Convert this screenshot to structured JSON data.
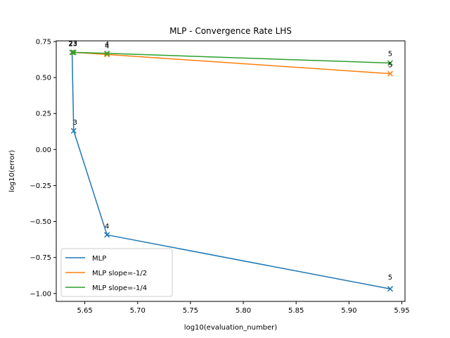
{
  "chart_data": {
    "type": "line",
    "title": "MLP - Convergence Rate LHS",
    "xlabel": "log10(evaluation_number)",
    "ylabel": "log10(error)",
    "xlim": [
      5.623,
      5.953
    ],
    "ylim": [
      -1.055,
      0.755
    ],
    "xticks": [
      5.65,
      5.7,
      5.75,
      5.8,
      5.85,
      5.9,
      5.95
    ],
    "xtick_labels": [
      "5.65",
      "5.70",
      "5.75",
      "5.80",
      "5.85",
      "5.90",
      "5.95"
    ],
    "yticks": [
      -1.0,
      -0.75,
      -0.5,
      -0.25,
      0.0,
      0.25,
      0.5,
      0.75
    ],
    "ytick_labels": [
      "−1.00",
      "−0.75",
      "−0.50",
      "−0.25",
      "0.00",
      "0.25",
      "0.50",
      "0.75"
    ],
    "grid": false,
    "legend_position": "lower-left",
    "series": [
      {
        "name": "MLP",
        "color": "#1f77b4",
        "marker": "x",
        "points": [
          {
            "x": 5.638,
            "y": 0.675,
            "label": "2"
          },
          {
            "x": 5.6395,
            "y": 0.13,
            "label": "3"
          },
          {
            "x": 5.671,
            "y": -0.593,
            "label": "4"
          },
          {
            "x": 5.939,
            "y": -0.968,
            "label": "5"
          }
        ]
      },
      {
        "name": "MLP slope=-1/2",
        "color": "#ff7f0e",
        "marker": "x",
        "points": [
          {
            "x": 5.638,
            "y": 0.675,
            "label": "2"
          },
          {
            "x": 5.6395,
            "y": 0.675,
            "label": "3"
          },
          {
            "x": 5.671,
            "y": 0.66,
            "label": "4"
          },
          {
            "x": 5.939,
            "y": 0.527,
            "label": "5"
          }
        ]
      },
      {
        "name": "MLP slope=-1/4",
        "color": "#2ca02c",
        "marker": "x",
        "points": [
          {
            "x": 5.638,
            "y": 0.675,
            "label": "2"
          },
          {
            "x": 5.6395,
            "y": 0.675,
            "label": "3"
          },
          {
            "x": 5.671,
            "y": 0.668,
            "label": "4"
          },
          {
            "x": 5.939,
            "y": 0.601,
            "label": "5"
          }
        ]
      }
    ]
  }
}
